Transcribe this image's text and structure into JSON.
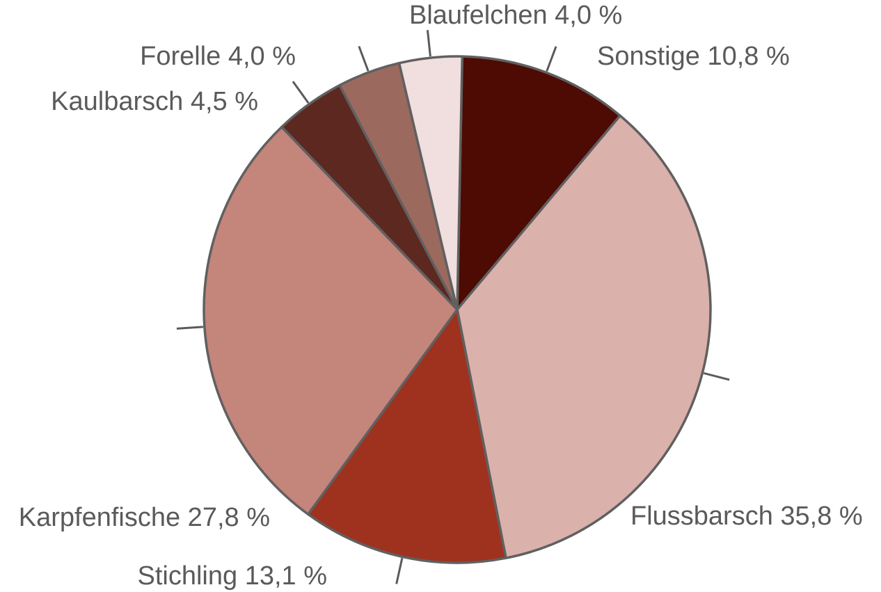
{
  "chart_data": {
    "type": "pie",
    "title": "",
    "slices": [
      {
        "label": "Sonstige 10,8 %",
        "value": 10.8,
        "color": "#4d0b03"
      },
      {
        "label": "Flussbarsch 35,8 %",
        "value": 35.8,
        "color": "#dbb1ab"
      },
      {
        "label": "Stichling 13,1 %",
        "value": 13.1,
        "color": "#9e321f"
      },
      {
        "label": "Karpfenfische 27,8 %",
        "value": 27.8,
        "color": "#c4857a"
      },
      {
        "label": "Kaulbarsch 4,5 %",
        "value": 4.5,
        "color": "#5c2820"
      },
      {
        "label": "Forelle 4,0 %",
        "value": 4.0,
        "color": "#9c695e"
      },
      {
        "label": "Blaufelchen 4,0 %",
        "value": 4.0,
        "color": "#f0dfde"
      }
    ],
    "start": "top, clockwise",
    "legend": "none; labels outside slices with leader lines"
  }
}
